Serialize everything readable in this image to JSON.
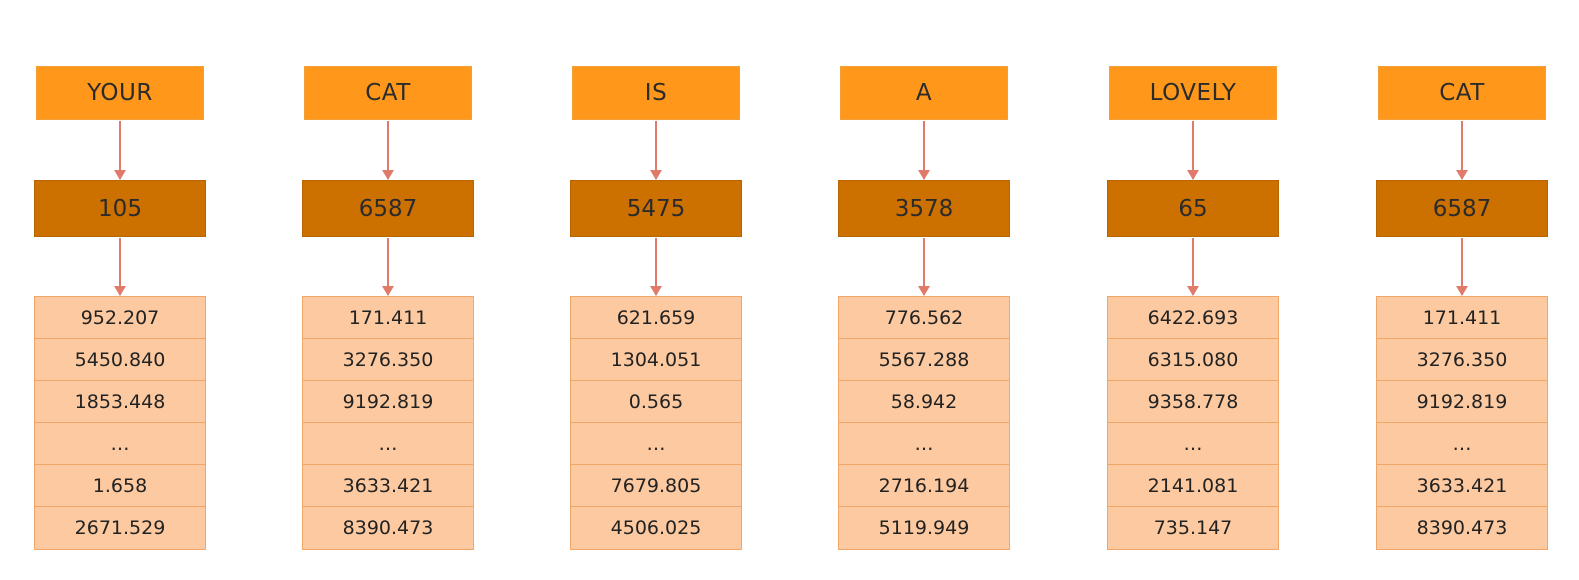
{
  "columns": [
    {
      "word": "YOUR",
      "id": "105",
      "values": [
        "952.207",
        "5450.840",
        "1853.448",
        "…",
        "1.658",
        "2671.529"
      ]
    },
    {
      "word": "CAT",
      "id": "6587",
      "values": [
        "171.411",
        "3276.350",
        "9192.819",
        "…",
        "3633.421",
        "8390.473"
      ]
    },
    {
      "word": "IS",
      "id": "5475",
      "values": [
        "621.659",
        "1304.051",
        "0.565",
        "…",
        "7679.805",
        "4506.025"
      ]
    },
    {
      "word": "A",
      "id": "3578",
      "values": [
        "776.562",
        "5567.288",
        "58.942",
        "…",
        "2716.194",
        "5119.949"
      ]
    },
    {
      "word": "LOVELY",
      "id": "65",
      "values": [
        "6422.693",
        "6315.080",
        "9358.778",
        "…",
        "2141.081",
        "735.147"
      ]
    },
    {
      "word": "CAT",
      "id": "6587",
      "values": [
        "171.411",
        "3276.350",
        "9192.819",
        "…",
        "3633.421",
        "8390.473"
      ]
    }
  ],
  "colors": {
    "word_box": "#ff981a",
    "id_box": "#cc7000",
    "vector_cell": "#fcc9a0",
    "arrow": "#e07a6a"
  }
}
